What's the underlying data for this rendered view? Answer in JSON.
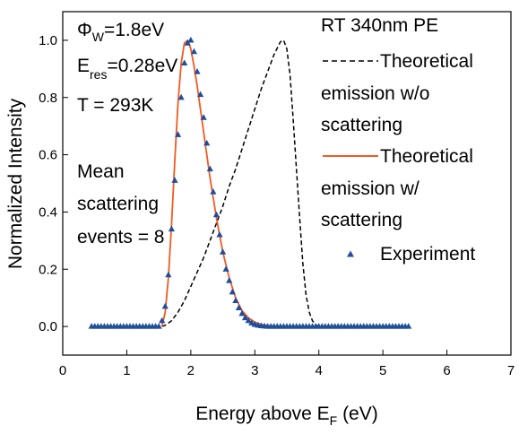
{
  "chart_data": {
    "type": "line",
    "title": "",
    "xlabel": {
      "main": "Energy above E",
      "sub": "F",
      "unit": " (eV)"
    },
    "ylabel": "Normalized Intensity",
    "xlim": [
      0,
      7
    ],
    "ylim": [
      -0.1,
      1.1
    ],
    "xticks": [
      0,
      1,
      2,
      3,
      4,
      5,
      6,
      7
    ],
    "yticks": [
      0.0,
      0.2,
      0.4,
      0.6,
      0.8,
      1.0
    ],
    "xtick_labels": [
      "0",
      "1",
      "2",
      "3",
      "4",
      "5",
      "6",
      "7"
    ],
    "ytick_labels": [
      "0.0",
      "0.2",
      "0.4",
      "0.6",
      "0.8",
      "1.0"
    ],
    "grid": false,
    "annotations": {
      "phi_main": "Φ",
      "phi_sub": "W",
      "phi_val": "=1.8eV",
      "eres_main": "E",
      "eres_sub": "res",
      "eres_val": "=0.28eV",
      "temp": "T = 293K",
      "mean1": "Mean",
      "mean2": "scattering",
      "mean3": "events = 8"
    },
    "legend": {
      "title": "RT 340nm PE",
      "placement": "top-right",
      "entries": [
        {
          "lines": [
            "Theoretical",
            "emission w/o",
            "scattering"
          ],
          "color": "#000000",
          "style": "dashed"
        },
        {
          "lines": [
            "Theoretical",
            "emission w/",
            "scattering"
          ],
          "color": "#f15a24",
          "style": "solid"
        },
        {
          "lines": [
            "Experiment"
          ],
          "color": "#1f4e9c",
          "style": "triangle"
        }
      ]
    },
    "series": [
      {
        "name": "Theoretical emission w/o scattering",
        "color": "#000000",
        "style": "dashed",
        "x": [
          1.55,
          1.6,
          1.7,
          1.8,
          1.9,
          2.0,
          2.1,
          2.2,
          2.3,
          2.4,
          2.5,
          2.6,
          2.7,
          2.8,
          2.9,
          3.0,
          3.1,
          3.2,
          3.3,
          3.4,
          3.45,
          3.5,
          3.55,
          3.6,
          3.65,
          3.7,
          3.75,
          3.8,
          3.85,
          3.9,
          3.95,
          4.0,
          4.05
        ],
        "y": [
          0.0,
          0.004,
          0.02,
          0.05,
          0.09,
          0.14,
          0.19,
          0.24,
          0.3,
          0.36,
          0.42,
          0.49,
          0.55,
          0.62,
          0.69,
          0.76,
          0.83,
          0.89,
          0.95,
          0.995,
          1.0,
          0.97,
          0.88,
          0.72,
          0.55,
          0.38,
          0.22,
          0.11,
          0.05,
          0.02,
          0.006,
          0.0,
          0.0
        ]
      },
      {
        "name": "Theoretical emission w/ scattering",
        "color": "#f15a24",
        "style": "solid",
        "x": [
          1.55,
          1.6,
          1.65,
          1.7,
          1.75,
          1.8,
          1.85,
          1.9,
          1.95,
          2.0,
          2.05,
          2.1,
          2.15,
          2.2,
          2.25,
          2.3,
          2.4,
          2.5,
          2.6,
          2.7,
          2.8,
          2.9,
          3.0,
          3.1,
          3.2,
          3.3,
          3.4,
          3.5
        ],
        "y": [
          0.0,
          0.05,
          0.17,
          0.36,
          0.58,
          0.78,
          0.92,
          0.99,
          1.0,
          0.97,
          0.91,
          0.84,
          0.76,
          0.68,
          0.6,
          0.52,
          0.38,
          0.26,
          0.17,
          0.1,
          0.055,
          0.03,
          0.015,
          0.007,
          0.003,
          0.001,
          0.0,
          0.0
        ]
      },
      {
        "name": "Experiment",
        "color": "#1f4e9c",
        "style": "triangle",
        "x": [
          0.45,
          0.5,
          0.55,
          0.6,
          0.65,
          0.7,
          0.75,
          0.8,
          0.85,
          0.9,
          0.95,
          1.0,
          1.05,
          1.1,
          1.15,
          1.2,
          1.25,
          1.3,
          1.35,
          1.4,
          1.45,
          1.5,
          1.55,
          1.6,
          1.65,
          1.7,
          1.75,
          1.8,
          1.85,
          1.9,
          1.95,
          2.0,
          2.05,
          2.1,
          2.15,
          2.2,
          2.25,
          2.3,
          2.35,
          2.4,
          2.45,
          2.5,
          2.55,
          2.6,
          2.65,
          2.7,
          2.75,
          2.8,
          2.85,
          2.9,
          2.95,
          3.0,
          3.05,
          3.1,
          3.15,
          3.2,
          3.25,
          3.3,
          3.35,
          3.4,
          3.45,
          3.5,
          3.55,
          3.6,
          3.65,
          3.7,
          3.75,
          3.8,
          3.85,
          3.9,
          3.95,
          4.0,
          4.05,
          4.1,
          4.15,
          4.2,
          4.25,
          4.3,
          4.35,
          4.4,
          4.45,
          4.5,
          4.55,
          4.6,
          4.65,
          4.7,
          4.75,
          4.8,
          4.85,
          4.9,
          4.95,
          5.0,
          5.05,
          5.1,
          5.15,
          5.2,
          5.25,
          5.3,
          5.35,
          5.4
        ],
        "y": [
          0,
          0,
          0,
          0,
          0,
          0,
          0,
          0,
          0,
          0,
          0,
          0,
          0,
          0,
          0,
          0,
          0,
          0,
          0,
          0,
          0,
          0,
          0.02,
          0.07,
          0.18,
          0.34,
          0.51,
          0.67,
          0.8,
          0.92,
          0.99,
          1.0,
          0.96,
          0.89,
          0.81,
          0.73,
          0.64,
          0.55,
          0.47,
          0.39,
          0.32,
          0.26,
          0.2,
          0.16,
          0.12,
          0.09,
          0.065,
          0.045,
          0.03,
          0.02,
          0.012,
          0.007,
          0.004,
          0.002,
          0.001,
          0,
          0,
          0,
          0,
          0,
          0,
          0,
          0,
          0,
          0,
          0,
          0,
          0,
          0,
          0,
          0,
          0,
          0,
          0,
          0,
          0,
          0,
          0,
          0,
          0,
          0,
          0,
          0,
          0,
          0,
          0,
          0,
          0,
          0,
          0,
          0,
          0,
          0,
          0,
          0,
          0,
          0,
          0,
          0,
          0
        ]
      }
    ]
  }
}
